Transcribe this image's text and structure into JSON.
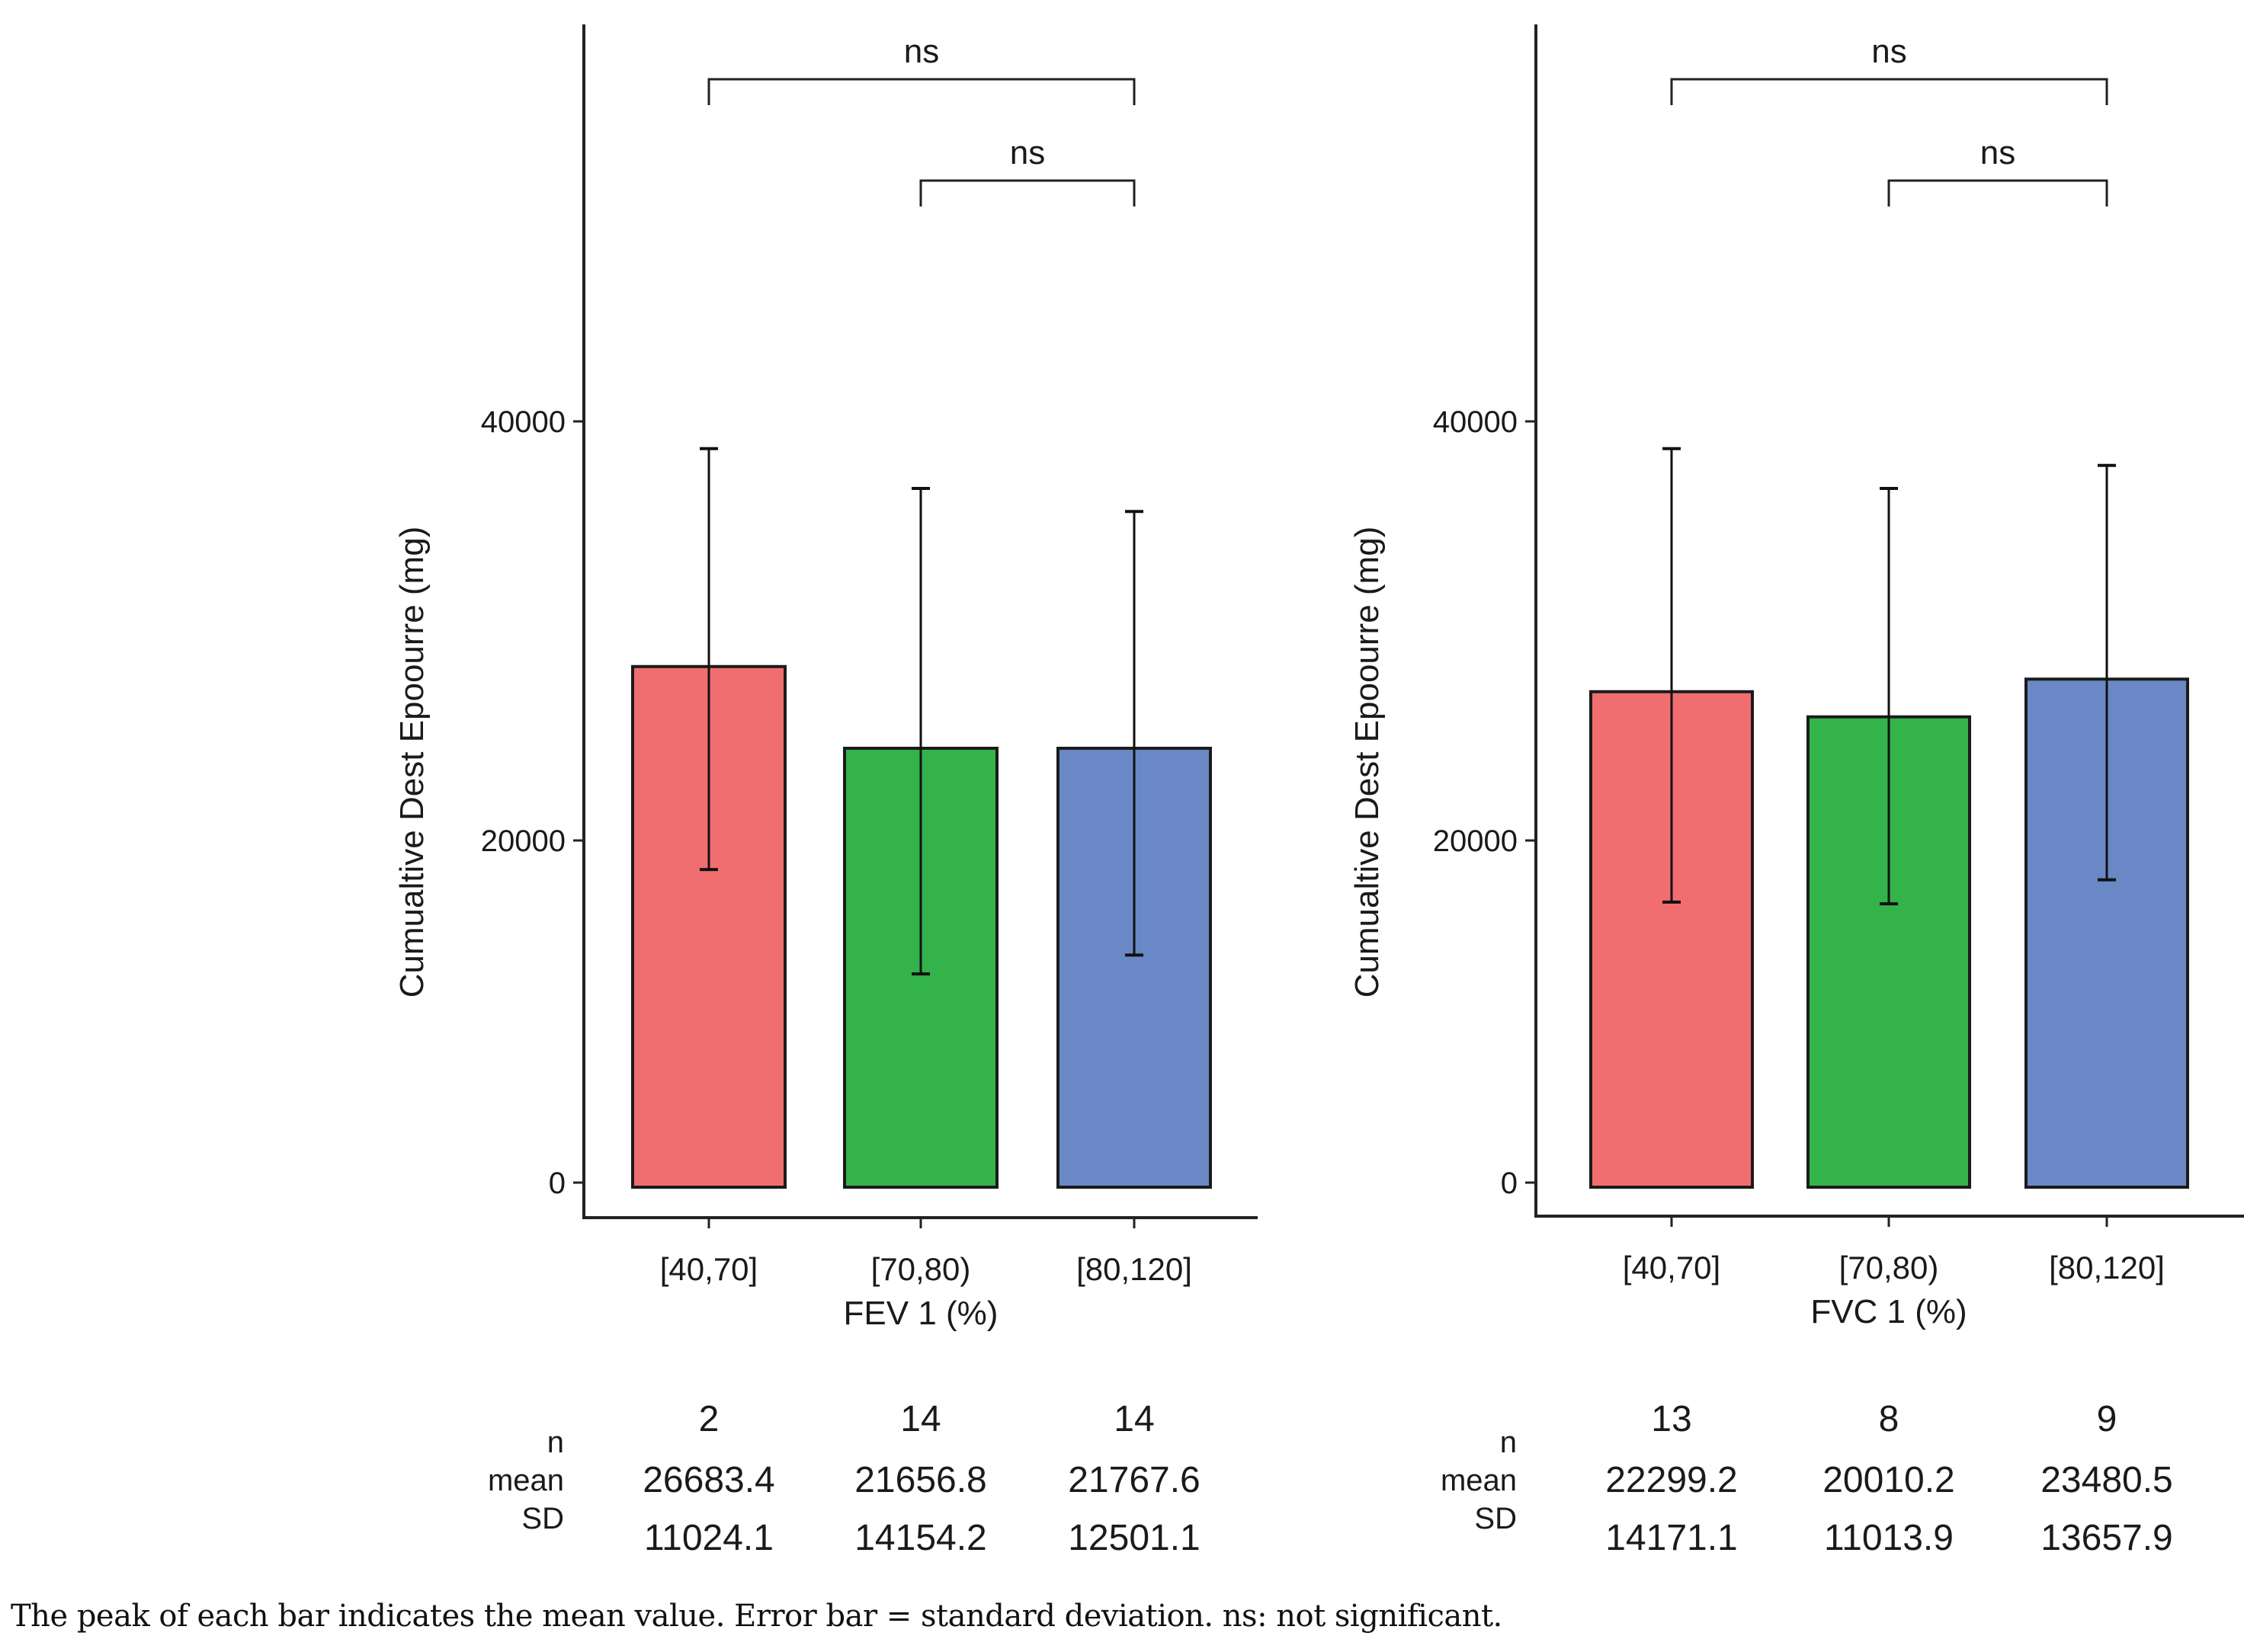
{
  "chart_data": [
    {
      "type": "bar",
      "ylabel": "Cumualtive Dest Epoourre (mg)",
      "xlabel": "FEV 1 (%)",
      "categories": [
        "[40,70]",
        "[70,80)",
        "[80,120]"
      ],
      "colors": [
        "#F06E70",
        "#33B34A",
        "#6A88C6"
      ],
      "yticks": [
        0,
        20000,
        40000
      ],
      "ytick_labels": [
        "0",
        "20000",
        "40000"
      ],
      "ylim": [
        -1500,
        60000
      ],
      "bar_values": [
        28300,
        24400,
        24400
      ],
      "error_upper": [
        38700,
        36800,
        35700
      ],
      "error_lower": [
        18300,
        12200,
        13300
      ],
      "significance": [
        {
          "from": 0,
          "to": 2,
          "label": "ns",
          "level": 1
        },
        {
          "from": 1,
          "to": 2,
          "label": "ns",
          "level": 0
        }
      ],
      "stats": {
        "row_labels": [
          "n",
          "mean",
          "SD"
        ],
        "n": [
          "2",
          "14",
          "14"
        ],
        "mean": [
          "26683.4",
          "21656.8",
          "21767.6"
        ],
        "sd": [
          "11024.1",
          "14154.2",
          "12501.1"
        ]
      },
      "grid": false,
      "legend": "none"
    },
    {
      "type": "bar",
      "ylabel": "Cumualtive Dest Epoourre (mg)",
      "xlabel": "FVC 1 (%)",
      "categories": [
        "[40,70]",
        "[70,80)",
        "[80,120]"
      ],
      "colors": [
        "#F06E70",
        "#33B34A",
        "#6A88C6"
      ],
      "yticks": [
        0,
        20000,
        40000
      ],
      "ytick_labels": [
        "0",
        "20000",
        "40000"
      ],
      "ylim": [
        -1500,
        60000
      ],
      "bar_values": [
        27100,
        25900,
        27700
      ],
      "error_upper": [
        38700,
        36800,
        37900
      ],
      "error_lower": [
        16400,
        16300,
        17700
      ],
      "significance": [
        {
          "from": 0,
          "to": 2,
          "label": "ns",
          "level": 1
        },
        {
          "from": 1,
          "to": 2,
          "label": "ns",
          "level": 0
        }
      ],
      "stats": {
        "row_labels": [
          "n",
          "mean",
          "SD"
        ],
        "n": [
          "13",
          "8",
          "9"
        ],
        "mean": [
          "22299.2",
          "20010.2",
          "23480.5"
        ],
        "sd": [
          "14171.1",
          "11013.9",
          "13657.9"
        ]
      },
      "grid": false,
      "legend": "none"
    }
  ],
  "caption": "The peak of each bar indicates the mean value. Error bar = standard deviation. ns:  not significant."
}
